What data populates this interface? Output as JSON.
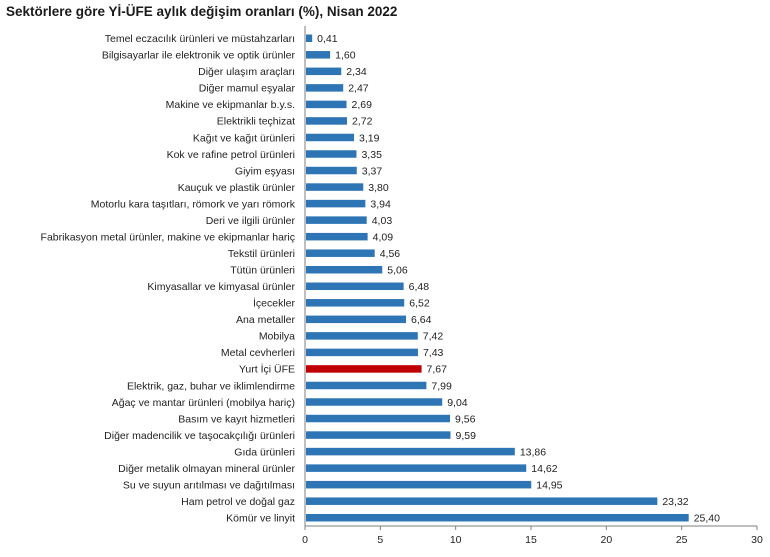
{
  "chart_data": {
    "type": "bar",
    "orientation": "horizontal",
    "title": "Sektörlere göre Yİ-ÜFE aylık değişim oranları (%), Nisan 2022",
    "xlabel": "",
    "ylabel": "",
    "xlim": [
      0,
      30
    ],
    "x_ticks": [
      "0",
      "5",
      "10",
      "15",
      "20",
      "25",
      "30"
    ],
    "grid": false,
    "legend": "none",
    "colors": {
      "bar": "#2E75B6",
      "highlight": "#C00000",
      "axis": "#7f7f7f"
    },
    "highlight_category": "Yurt İçi ÜFE",
    "categories": [
      "Temel eczacılık ürünleri ve müstahzarları",
      "Bilgisayarlar ile elektronik ve optik ürünler",
      "Diğer ulaşım araçları",
      "Diğer mamul eşyalar",
      "Makine ve ekipmanlar b.y.s.",
      "Elektrikli teçhizat",
      "Kağıt ve kağıt ürünleri",
      "Kok ve rafine petrol ürünleri",
      "Giyim eşyası",
      "Kauçuk ve plastik ürünler",
      "Motorlu kara taşıtları, römork ve yarı römork",
      "Deri ve ilgili ürünler",
      "Fabrikasyon metal ürünler, makine ve ekipmanlar hariç",
      "Tekstil ürünleri",
      "Tütün ürünleri",
      "Kimyasallar ve kimyasal ürünler",
      "İçecekler",
      "Ana metaller",
      "Mobilya",
      "Metal cevherleri",
      "Yurt İçi ÜFE",
      "Elektrik, gaz, buhar ve iklimlendirme",
      "Ağaç ve mantar ürünleri (mobilya hariç)",
      "Basım ve kayıt hizmetleri",
      "Diğer madencilik ve taşocakçılığı ürünleri",
      "Gıda ürünleri",
      "Diğer metalik olmayan mineral ürünler",
      "Su ve suyun arıtılması ve dağıtılması",
      "Ham petrol ve doğal gaz",
      "Kömür ve linyit"
    ],
    "values": [
      0.41,
      1.6,
      2.34,
      2.47,
      2.69,
      2.72,
      3.19,
      3.35,
      3.37,
      3.8,
      3.94,
      4.03,
      4.09,
      4.56,
      5.06,
      6.48,
      6.52,
      6.64,
      7.42,
      7.43,
      7.67,
      7.99,
      9.04,
      9.56,
      9.59,
      13.86,
      14.62,
      14.95,
      23.32,
      25.4
    ],
    "value_labels": [
      "0,41",
      "1,60",
      "2,34",
      "2,47",
      "2,69",
      "2,72",
      "3,19",
      "3,35",
      "3,37",
      "3,80",
      "3,94",
      "4,03",
      "4,09",
      "4,56",
      "5,06",
      "6,48",
      "6,52",
      "6,64",
      "7,42",
      "7,43",
      "7,67",
      "7,99",
      "9,04",
      "9,56",
      "9,59",
      "13,86",
      "14,62",
      "14,95",
      "23,32",
      "25,40"
    ]
  }
}
